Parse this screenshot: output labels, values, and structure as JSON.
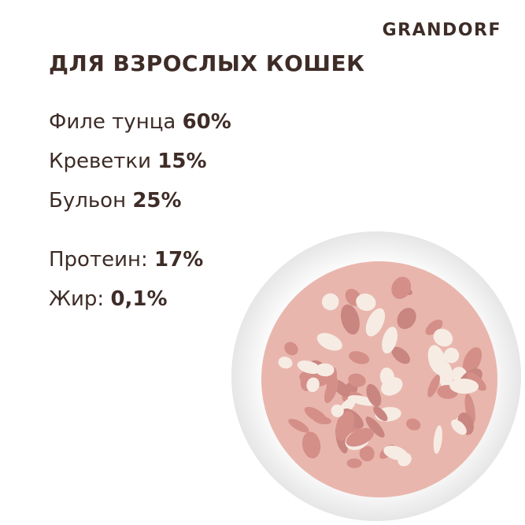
{
  "brand": "GRANDORF",
  "title": "ДЛЯ ВЗРОСЛЫХ КОШЕК",
  "ingredients": [
    {
      "label": "Филе тунца",
      "value": "60%"
    },
    {
      "label": "Креветки",
      "value": "15%"
    },
    {
      "label": "Бульон",
      "value": "25%"
    }
  ],
  "nutrients": [
    {
      "label": "Протеин:",
      "value": "17%"
    },
    {
      "label": "Жир:",
      "value": "0,1%"
    }
  ],
  "colors": {
    "text": "#3e2c27",
    "background": "#ffffff",
    "bowl": "#f4f4f4",
    "tuna": "#d99a94",
    "shrimp": "#f5e6dc"
  }
}
